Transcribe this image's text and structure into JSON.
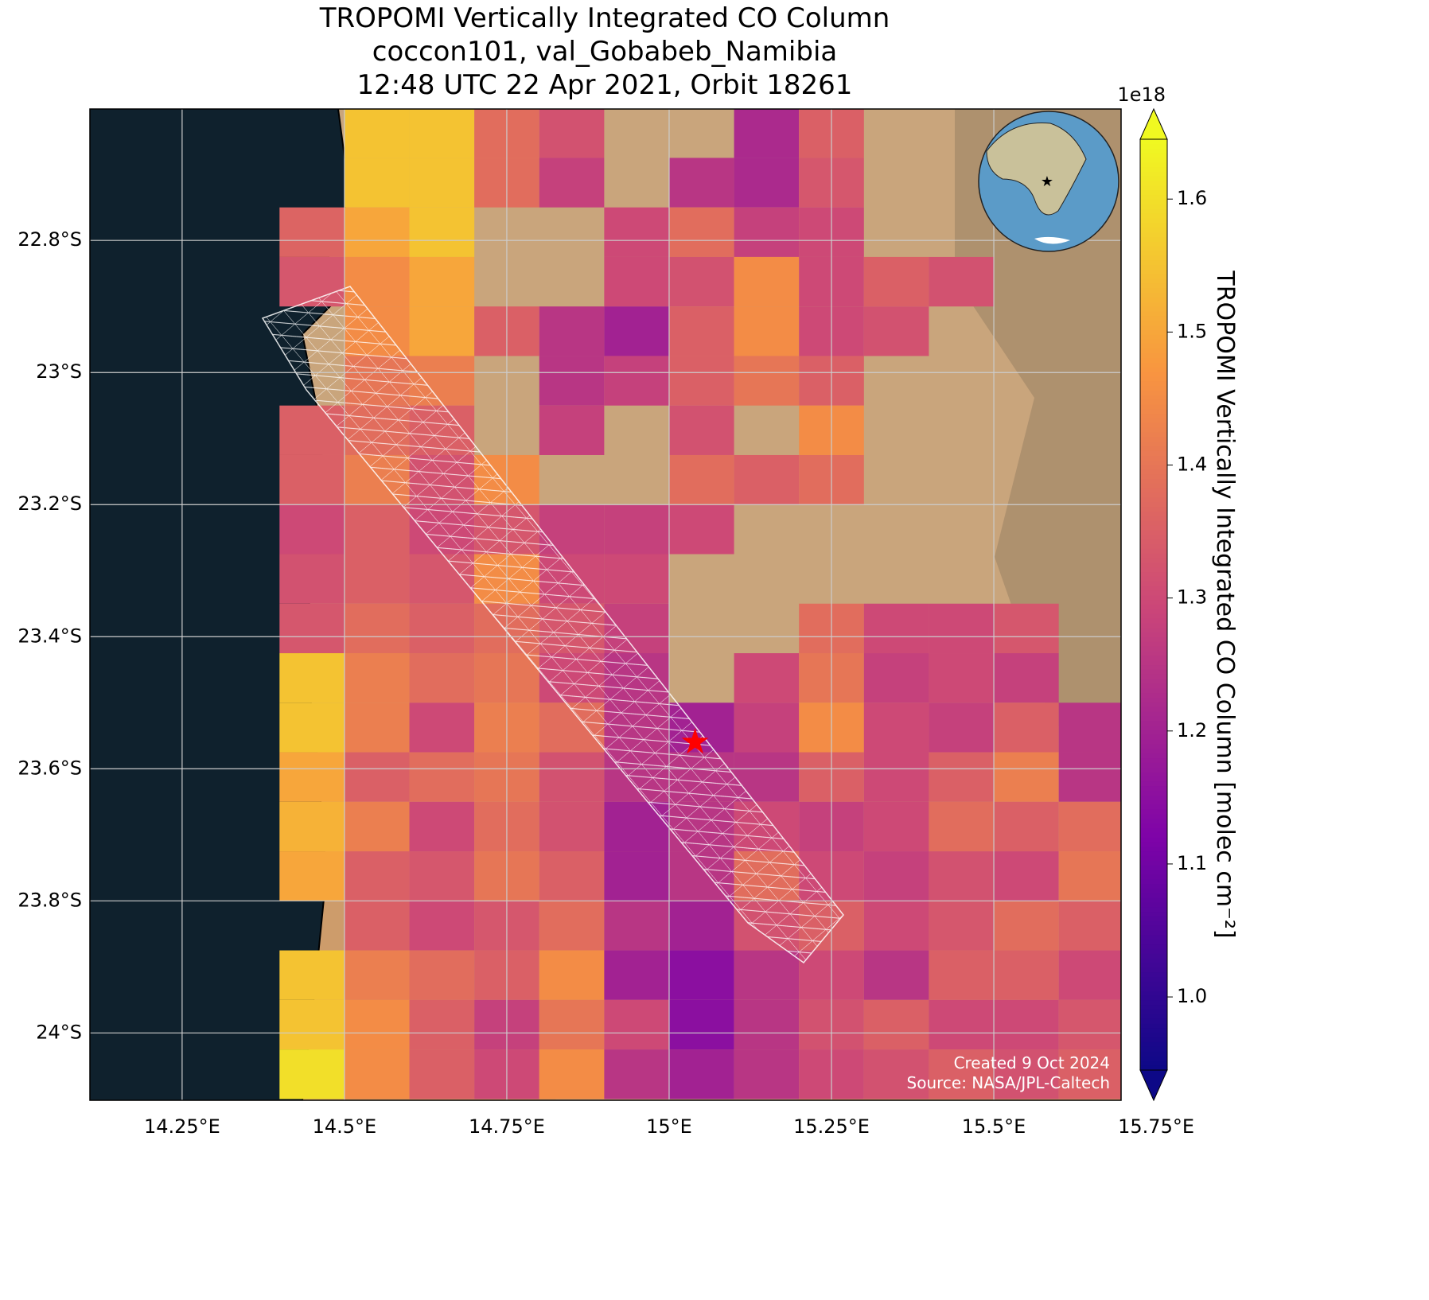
{
  "chart_data": {
    "type": "map",
    "title": [
      "TROPOMI Vertically Integrated CO Column",
      "coccon101, val_Gobabeb_Namibia",
      "12:48 UTC 22 Apr 2021, Orbit 18261"
    ],
    "xlim": [
      14.108,
      15.696
    ],
    "ylim": [
      -24.102,
      -22.601
    ],
    "xticks": [
      {
        "value": 14.25,
        "label": "14.25°E"
      },
      {
        "value": 14.5,
        "label": "14.5°E"
      },
      {
        "value": 14.75,
        "label": "14.75°E"
      },
      {
        "value": 15,
        "label": "15°E"
      },
      {
        "value": 15.25,
        "label": "15.25°E"
      },
      {
        "value": 15.5,
        "label": "15.5°E"
      },
      {
        "value": 15.75,
        "label": "15.75°E"
      }
    ],
    "yticks": [
      {
        "value": -22.8,
        "label": "22.8°S"
      },
      {
        "value": -23,
        "label": "23°S"
      },
      {
        "value": -23.2,
        "label": "23.2°S"
      },
      {
        "value": -23.4,
        "label": "23.4°S"
      },
      {
        "value": -23.6,
        "label": "23.6°S"
      },
      {
        "value": -23.8,
        "label": "23.8°S"
      },
      {
        "value": -24,
        "label": "24°S"
      }
    ],
    "grid": true,
    "cells": {
      "lon0": 14.4,
      "lat0": -22.6,
      "dlon": 0.1,
      "dlat": -0.075,
      "values": [
        [
          null,
          1.55,
          1.55,
          1.38,
          1.32,
          null,
          null,
          1.22,
          1.35,
          null,
          null,
          null,
          null
        ],
        [
          null,
          1.55,
          1.55,
          1.38,
          1.28,
          null,
          1.25,
          1.22,
          1.33,
          null,
          null,
          null,
          null
        ],
        [
          1.36,
          1.5,
          1.55,
          null,
          null,
          1.3,
          1.38,
          1.28,
          1.3,
          null,
          null,
          null,
          null
        ],
        [
          1.33,
          1.45,
          1.5,
          null,
          null,
          1.3,
          1.32,
          1.45,
          1.3,
          1.35,
          1.32,
          null,
          null
        ],
        [
          null,
          1.45,
          1.5,
          1.35,
          1.25,
          1.2,
          1.35,
          1.45,
          1.3,
          1.32,
          null,
          null,
          null
        ],
        [
          null,
          1.4,
          1.42,
          null,
          1.25,
          1.28,
          1.35,
          1.4,
          1.35,
          null,
          null,
          null,
          null
        ],
        [
          1.35,
          1.38,
          1.35,
          null,
          1.28,
          null,
          1.32,
          null,
          1.45,
          null,
          null,
          null,
          null
        ],
        [
          1.35,
          1.42,
          1.32,
          1.45,
          null,
          null,
          1.38,
          1.35,
          1.38,
          null,
          null,
          null,
          null
        ],
        [
          1.3,
          1.35,
          1.3,
          1.33,
          1.28,
          1.28,
          1.3,
          null,
          null,
          null,
          null,
          null,
          null
        ],
        [
          1.32,
          1.35,
          1.33,
          1.45,
          1.3,
          1.3,
          null,
          null,
          null,
          null,
          null,
          null,
          null
        ],
        [
          1.33,
          1.38,
          1.35,
          1.38,
          1.33,
          1.28,
          null,
          null,
          1.38,
          1.3,
          1.3,
          1.33,
          null
        ],
        [
          1.55,
          1.42,
          1.38,
          1.4,
          1.3,
          1.25,
          null,
          1.3,
          1.4,
          1.28,
          1.3,
          1.28,
          null
        ],
        [
          1.55,
          1.42,
          1.3,
          1.42,
          1.38,
          1.25,
          1.2,
          1.28,
          1.45,
          1.3,
          1.28,
          1.35,
          1.25
        ],
        [
          1.5,
          1.35,
          1.38,
          1.4,
          1.32,
          1.25,
          1.25,
          1.25,
          1.35,
          1.3,
          1.35,
          1.42,
          1.25
        ],
        [
          1.52,
          1.42,
          1.3,
          1.38,
          1.32,
          1.2,
          1.25,
          1.3,
          1.28,
          1.3,
          1.38,
          1.35,
          1.38
        ],
        [
          1.5,
          1.35,
          1.33,
          1.4,
          1.35,
          1.2,
          1.25,
          1.38,
          1.3,
          1.28,
          1.32,
          1.3,
          1.4
        ],
        [
          null,
          1.35,
          1.3,
          1.33,
          1.38,
          1.25,
          1.2,
          1.32,
          1.35,
          1.3,
          1.33,
          1.38,
          1.35
        ],
        [
          1.55,
          1.42,
          1.38,
          1.35,
          1.45,
          1.2,
          1.15,
          1.25,
          1.3,
          1.25,
          1.35,
          1.35,
          1.3
        ],
        [
          1.55,
          1.45,
          1.35,
          1.28,
          1.4,
          1.3,
          1.15,
          1.25,
          1.32,
          1.35,
          1.3,
          1.3,
          1.33
        ],
        [
          1.6,
          1.45,
          1.35,
          1.3,
          1.45,
          1.25,
          1.2,
          1.25,
          1.3,
          1.32,
          1.35,
          1.32,
          1.35
        ]
      ]
    },
    "site": {
      "lon": 15.04,
      "lat": -23.56
    },
    "colormap": "plasma",
    "clim": [
      0.945,
      1.645
    ],
    "cticks": [
      1.0,
      1.1,
      1.2,
      1.3,
      1.4,
      1.5,
      1.6
    ],
    "cticks_labels": [
      "1.0",
      "1.1",
      "1.2",
      "1.3",
      "1.4",
      "1.5",
      "1.6"
    ],
    "colorbar_offset": "1e18",
    "colorbar_label": "TROPOMI Vertically Integrated CO Column [molec cm⁻²]",
    "credits": [
      "Created 9 Oct 2024",
      "Source: NASA/JPL-Caltech"
    ]
  }
}
